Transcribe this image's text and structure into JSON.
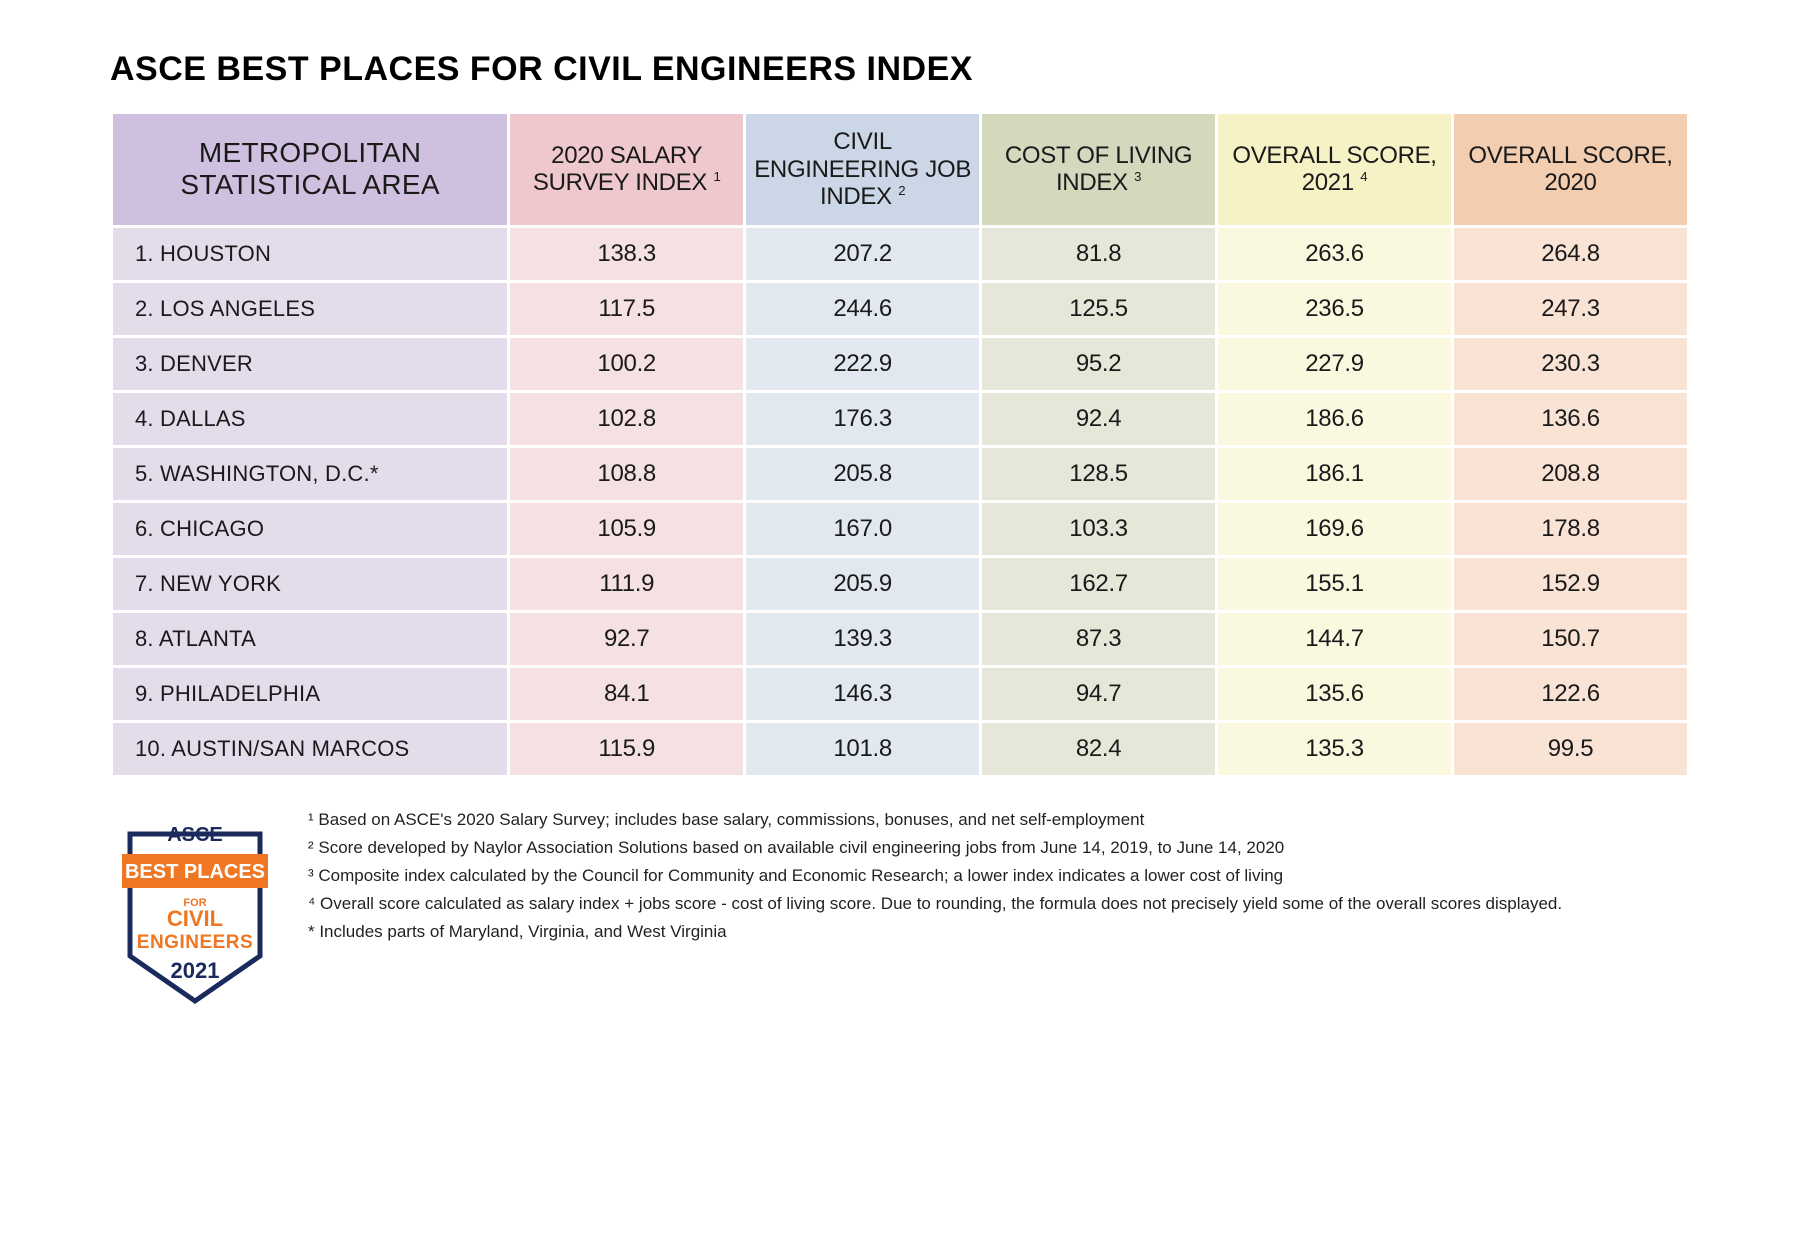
{
  "title": "ASCE BEST PLACES FOR CIVIL ENGINEERS INDEX",
  "table": {
    "columns": [
      {
        "label": "METROPOLITAN STATISTICAL AREA",
        "sup": "",
        "header_bg": "#cfc0e0",
        "cell_bg": "#e3dceb",
        "align": "left",
        "width": "22%"
      },
      {
        "label": "2020 SALARY SURVEY INDEX",
        "sup": "1",
        "header_bg": "#efc8ce",
        "cell_bg": "#f5e1e3",
        "align": "center",
        "width": "13%"
      },
      {
        "label": "CIVIL ENGINEERING JOB INDEX",
        "sup": "2",
        "header_bg": "#cbd6e6",
        "cell_bg": "#e2e8f0",
        "align": "center",
        "width": "13%"
      },
      {
        "label": "COST OF LIVING INDEX",
        "sup": "3",
        "header_bg": "#d3d9bd",
        "cell_bg": "#e5e8d8",
        "align": "center",
        "width": "13%"
      },
      {
        "label": "OVERALL SCORE, 2021",
        "sup": "4",
        "header_bg": "#f7f2c6",
        "cell_bg": "#fbf8e0",
        "align": "center",
        "width": "13%"
      },
      {
        "label": "OVERALL SCORE, 2020",
        "sup": "",
        "header_bg": "#f3cdb0",
        "cell_bg": "#f8e3d4",
        "align": "center",
        "width": "13%"
      }
    ],
    "rows": [
      {
        "area": "1.  HOUSTON",
        "values": [
          "138.3",
          "207.2",
          "81.8",
          "263.6",
          "264.8"
        ]
      },
      {
        "area": "2. LOS ANGELES",
        "values": [
          "117.5",
          "244.6",
          "125.5",
          "236.5",
          "247.3"
        ]
      },
      {
        "area": "3. DENVER",
        "values": [
          "100.2",
          "222.9",
          "95.2",
          "227.9",
          "230.3"
        ]
      },
      {
        "area": "4. DALLAS",
        "values": [
          "102.8",
          "176.3",
          "92.4",
          "186.6",
          "136.6"
        ]
      },
      {
        "area": "5. WASHINGTON, D.C.*",
        "values": [
          "108.8",
          "205.8",
          "128.5",
          "186.1",
          "208.8"
        ]
      },
      {
        "area": "6. CHICAGO",
        "values": [
          "105.9",
          "167.0",
          "103.3",
          "169.6",
          "178.8"
        ]
      },
      {
        "area": "7. NEW YORK",
        "values": [
          "111.9",
          "205.9",
          "162.7",
          "155.1",
          "152.9"
        ]
      },
      {
        "area": "8. ATLANTA",
        "values": [
          "92.7",
          "139.3",
          "87.3",
          "144.7",
          "150.7"
        ]
      },
      {
        "area": "9. PHILADELPHIA",
        "values": [
          "84.1",
          "146.3",
          "94.7",
          "135.6",
          "122.6"
        ]
      },
      {
        "area": "10. AUSTIN/SAN MARCOS",
        "values": [
          "115.9",
          "101.8",
          "82.4",
          "135.3",
          "99.5"
        ]
      }
    ]
  },
  "footnotes": [
    "¹ Based on ASCE's 2020 Salary Survey; includes base salary, commissions, bonuses, and net self-employment",
    "² Score developed by Naylor Association Solutions based on available civil engineering jobs from June 14, 2019, to June 14, 2020",
    "³ Composite index calculated by the Council for Community and Economic Research; a lower index indicates a lower cost of living",
    "⁴ Overall score calculated as salary index + jobs score - cost of living score. Due to rounding, the formula does not precisely yield some of the overall scores displayed.",
    "* Includes parts of Maryland, Virginia, and West Virginia"
  ],
  "badge": {
    "asce": "ASCE",
    "best_places": "BEST PLACES",
    "for": "FOR",
    "civil": "CIVIL",
    "engineers": "ENGINEERS",
    "year": "2021",
    "colors": {
      "navy": "#1a2a5c",
      "orange": "#ef7622",
      "white": "#ffffff"
    }
  }
}
